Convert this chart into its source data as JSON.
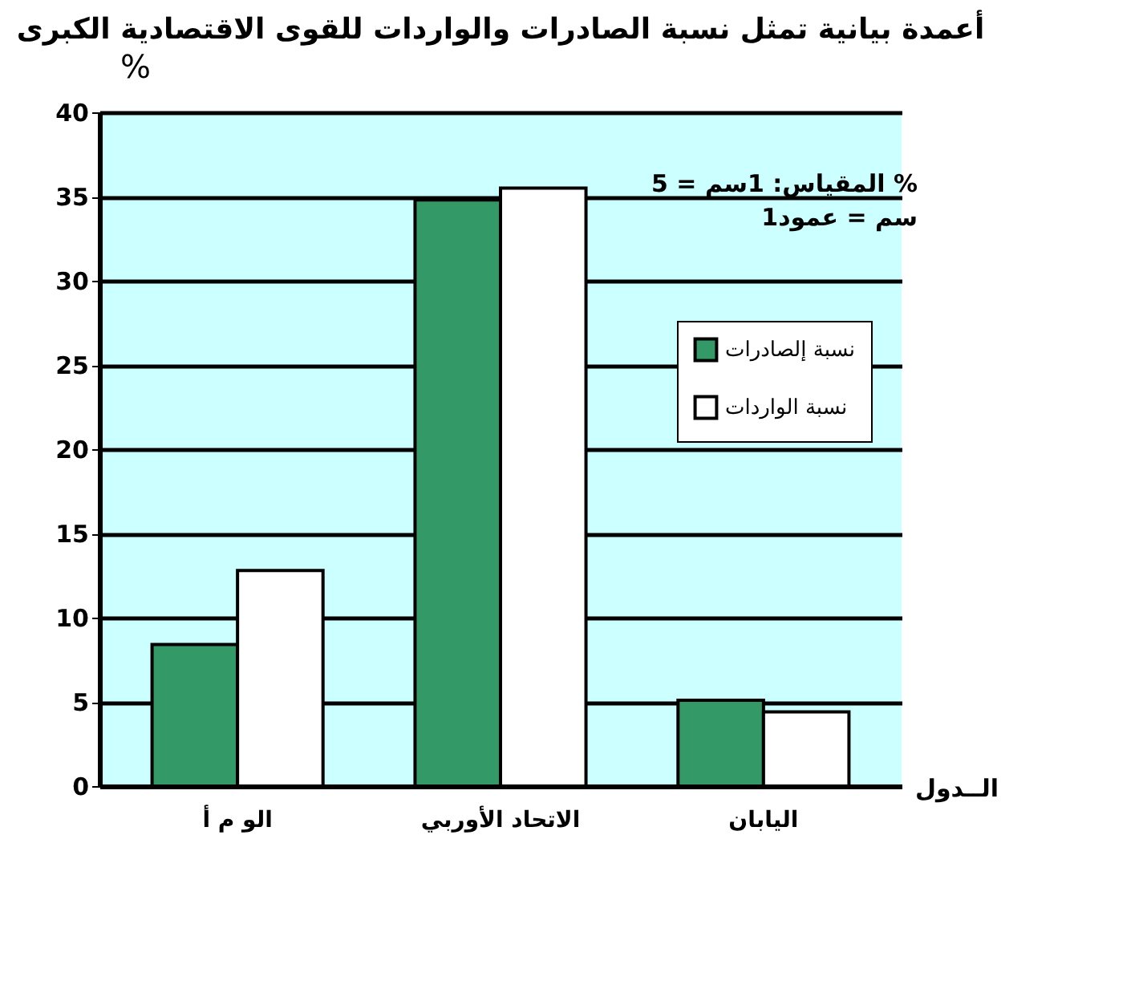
{
  "chart_data": {
    "type": "bar",
    "title": "أعمدة بيانية تمثل نسبة الصادرات والواردات للقوى الاقتصادية الكبرى",
    "xlabel": "الــدول",
    "ylabel": "%",
    "categories": [
      "الو م أ",
      "الاتحاد الأوربي",
      "اليابان"
    ],
    "series": [
      {
        "name": "نسبة إلصادرات",
        "color": "#339966",
        "values": [
          8.4,
          34.8,
          5.1
        ]
      },
      {
        "name": "نسبة الواردات",
        "color": "#ffffff",
        "values": [
          12.8,
          35.5,
          4.4
        ]
      }
    ],
    "ylim": [
      0,
      40
    ],
    "yticks": [
      0,
      5,
      10,
      15,
      20,
      25,
      30,
      35,
      40
    ],
    "grid": "y",
    "legend": "right",
    "annotations": [
      "المقياس:  1سم = 5 %",
      "1سم = عمود"
    ]
  }
}
